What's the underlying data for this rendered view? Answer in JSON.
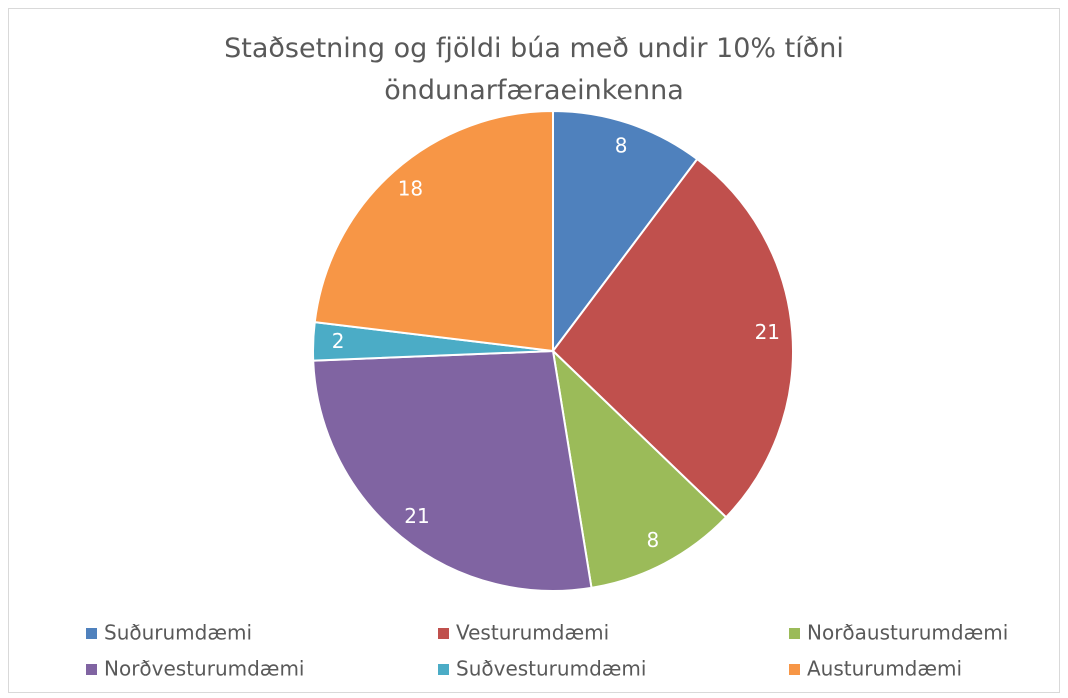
{
  "chart_data": {
    "type": "pie",
    "title": "Staðsetning og fjöldi búa með undir 10% tíðni öndunarfæraeinkenna",
    "categories": [
      "Suðurumdæmi",
      "Vesturumdæmi",
      "Norðausturumdæmi",
      "Norðvesturumdæmi",
      "Suðvesturumdæmi",
      "Austurumdæmi"
    ],
    "values": [
      8,
      21,
      8,
      21,
      2,
      18
    ],
    "colors": [
      "#4f81bd",
      "#c0504d",
      "#9bbb59",
      "#8064a2",
      "#4bacc6",
      "#f79646"
    ],
    "legend": "bottom"
  }
}
